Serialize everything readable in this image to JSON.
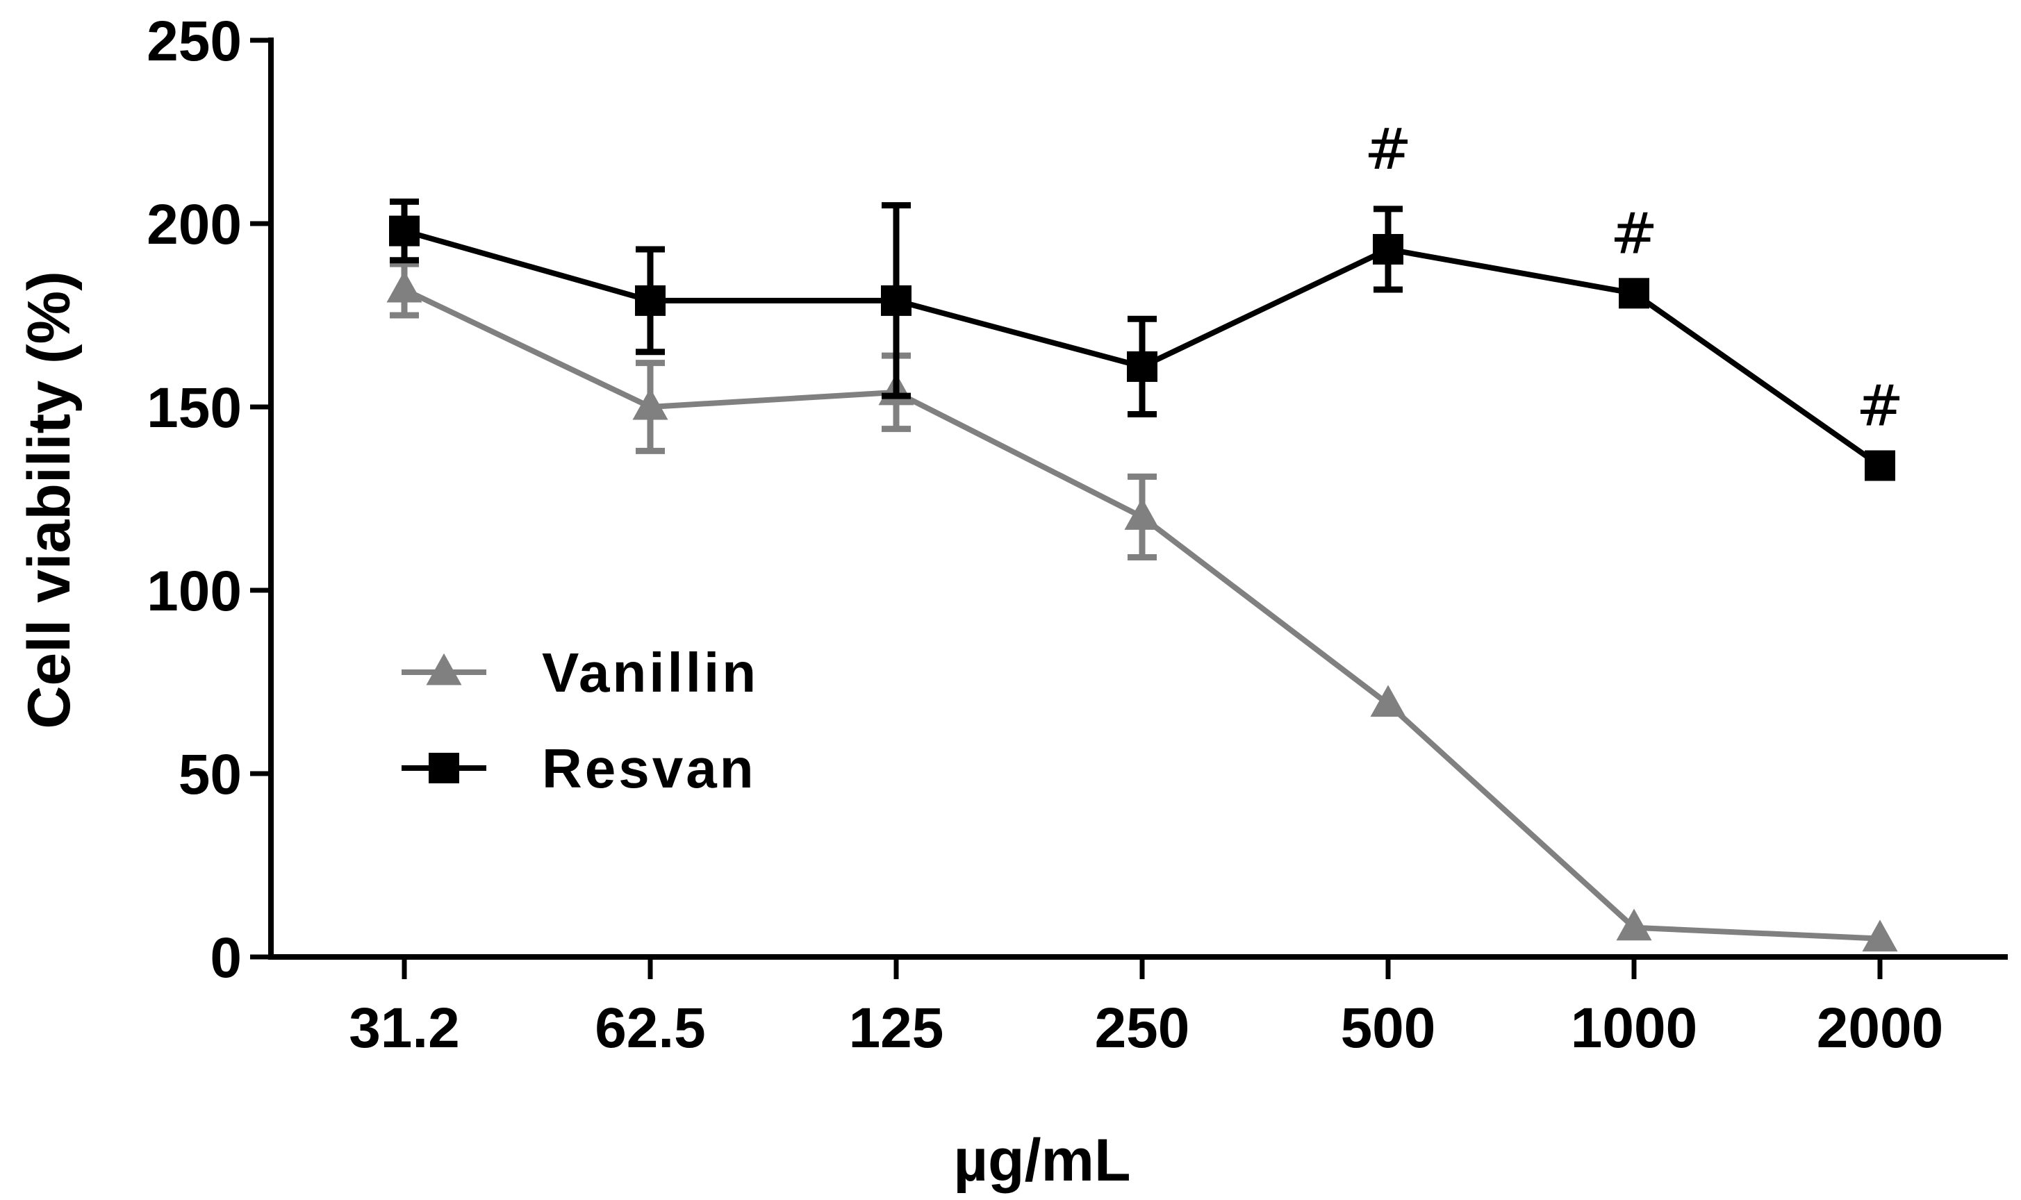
{
  "chart_data": {
    "type": "line",
    "title": "",
    "xlabel": "µg/mL",
    "ylabel": "Cell viability (%)",
    "categories": [
      "31.2",
      "62.5",
      "125",
      "250",
      "500",
      "1000",
      "2000"
    ],
    "ylim": [
      0,
      250
    ],
    "yticks": [
      "0",
      "50",
      "100",
      "150",
      "200",
      "250"
    ],
    "legend_position": "lower-left",
    "grid": false,
    "series": [
      {
        "name": "Vanillin",
        "color": "#808080",
        "marker": "triangle",
        "values": [
          182,
          150,
          154,
          120,
          69,
          8,
          5
        ],
        "errors": [
          7,
          12,
          10,
          11,
          0,
          0,
          0
        ]
      },
      {
        "name": "Resvan",
        "color": "#000000",
        "marker": "square",
        "values": [
          198,
          179,
          179,
          161,
          193,
          181,
          134
        ],
        "errors": [
          8,
          14,
          26,
          13,
          11,
          0,
          0
        ]
      }
    ],
    "annotations": [
      {
        "category": "500",
        "text": "#"
      },
      {
        "category": "1000",
        "text": "#"
      },
      {
        "category": "2000",
        "text": "#"
      }
    ]
  }
}
